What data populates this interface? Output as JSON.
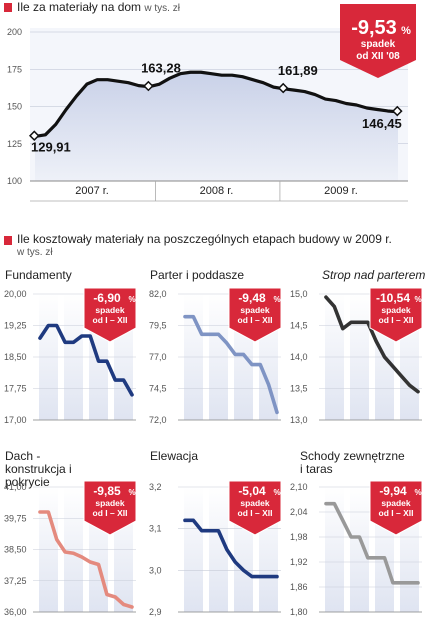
{
  "main": {
    "title": "Ile za materiały na dom",
    "unit": "w tys. zł"
  },
  "badge_main": {
    "value": "-9,53",
    "pct": "%",
    "line1": "spadek",
    "line2": "od XII '08",
    "color": "#d8283a"
  },
  "section2": {
    "title": "Ile kosztowały materiały na poszczególnych etapach budowy w 2009 r.",
    "unit": "w tys. zł"
  },
  "small_badge": {
    "line1": "spadek",
    "line2": "od I – XII"
  },
  "colors": {
    "accent": "#d8283a",
    "navy": "#1f3a80",
    "light_blue": "#7f94c4",
    "dark": "#333333",
    "salmon": "#e48a7e",
    "grey": "#999999",
    "area": "#dfe4f1"
  },
  "chart_data": [
    {
      "type": "area",
      "title": "Ile za materiały na dom",
      "unit": "w tys. zł",
      "y_ticks": [
        "100",
        "125",
        "150",
        "175",
        "200"
      ],
      "ylim": [
        100,
        200
      ],
      "x_groups": [
        "2007 r.",
        "2008 r.",
        "2009 r."
      ],
      "x": [
        0,
        1,
        2,
        3,
        4,
        5,
        6,
        7,
        8,
        9,
        10,
        11,
        12,
        13,
        14,
        15,
        16,
        17,
        18,
        19,
        20,
        21,
        22,
        23,
        24,
        25,
        26,
        27,
        28,
        29,
        30,
        31,
        32,
        33,
        34,
        35
      ],
      "values": [
        129.91,
        131,
        138,
        148,
        157,
        165,
        168,
        168,
        167,
        166,
        164,
        163.28,
        165,
        169,
        172,
        173,
        173,
        172,
        171,
        171,
        170,
        168,
        166,
        163,
        161.89,
        161,
        160,
        158,
        155,
        154,
        152,
        151,
        149,
        148,
        147,
        146.45
      ],
      "labels": [
        {
          "index": 0,
          "text": "129,91"
        },
        {
          "index": 11,
          "text": "163,28"
        },
        {
          "index": 24,
          "text": "161,89"
        },
        {
          "index": 35,
          "text": "146,45"
        }
      ],
      "badge": "-9,53% spadek od XII '08"
    },
    {
      "type": "line",
      "title": "Fundamenty",
      "y_ticks": [
        "20,00",
        "19,25",
        "18,50",
        "17,75",
        "17,00"
      ],
      "ylim": [
        17.0,
        20.0
      ],
      "values": [
        18.95,
        19.25,
        19.25,
        18.85,
        18.85,
        19.0,
        19.0,
        18.4,
        18.4,
        17.95,
        17.95,
        17.6
      ],
      "color": "#1f3a80",
      "badge_value": "-6,90",
      "badge_pct": "%"
    },
    {
      "type": "line",
      "title": "Parter i poddasze",
      "y_ticks": [
        "82,0",
        "79,5",
        "77,0",
        "74,5",
        "72,0"
      ],
      "ylim": [
        72.0,
        82.0
      ],
      "values": [
        80.2,
        80.2,
        78.8,
        78.8,
        78.8,
        78.1,
        77.2,
        77.2,
        76.4,
        76.4,
        74.8,
        72.6
      ],
      "color": "#7f94c4",
      "badge_value": "-9,48",
      "badge_pct": "%"
    },
    {
      "type": "line",
      "title": "Strop nad parterem",
      "y_ticks": [
        "15,0",
        "14,5",
        "14,0",
        "13,5",
        "13,0"
      ],
      "ylim": [
        13.0,
        15.0
      ],
      "values": [
        14.95,
        14.8,
        14.45,
        14.55,
        14.55,
        14.55,
        14.25,
        14.0,
        13.85,
        13.7,
        13.55,
        13.45
      ],
      "color": "#333333",
      "badge_value": "-10,54",
      "badge_pct": "%"
    },
    {
      "type": "line",
      "title": "Dach - konstrukcja i pokrycie",
      "y_ticks": [
        "41,00",
        "39,75",
        "38,50",
        "37,25",
        "36,00"
      ],
      "ylim": [
        36.0,
        41.0
      ],
      "values": [
        40.0,
        40.0,
        38.9,
        38.4,
        38.35,
        38.2,
        38.0,
        37.9,
        36.7,
        36.6,
        36.3,
        36.2
      ],
      "color": "#e48a7e",
      "badge_value": "-9,85",
      "badge_pct": "%"
    },
    {
      "type": "line",
      "title": "Elewacja",
      "y_ticks": [
        "3,2",
        "3,1",
        "3,0",
        "2,9"
      ],
      "ylim": [
        2.9,
        3.2
      ],
      "values": [
        3.12,
        3.12,
        3.095,
        3.095,
        3.095,
        3.05,
        3.02,
        3.0,
        2.985,
        2.985,
        2.985,
        2.985
      ],
      "color": "#1f3a80",
      "badge_value": "-5,04",
      "badge_pct": "%"
    },
    {
      "type": "line",
      "title": "Schody zewnętrzne i taras",
      "y_ticks": [
        "2,10",
        "2,04",
        "1,98",
        "1,92",
        "1,86",
        "1,80"
      ],
      "ylim": [
        1.8,
        2.1
      ],
      "values": [
        2.06,
        2.06,
        2.02,
        1.98,
        1.98,
        1.93,
        1.93,
        1.93,
        1.87,
        1.87,
        1.87,
        1.87
      ],
      "color": "#999999",
      "badge_value": "-9,94",
      "badge_pct": "%"
    }
  ]
}
